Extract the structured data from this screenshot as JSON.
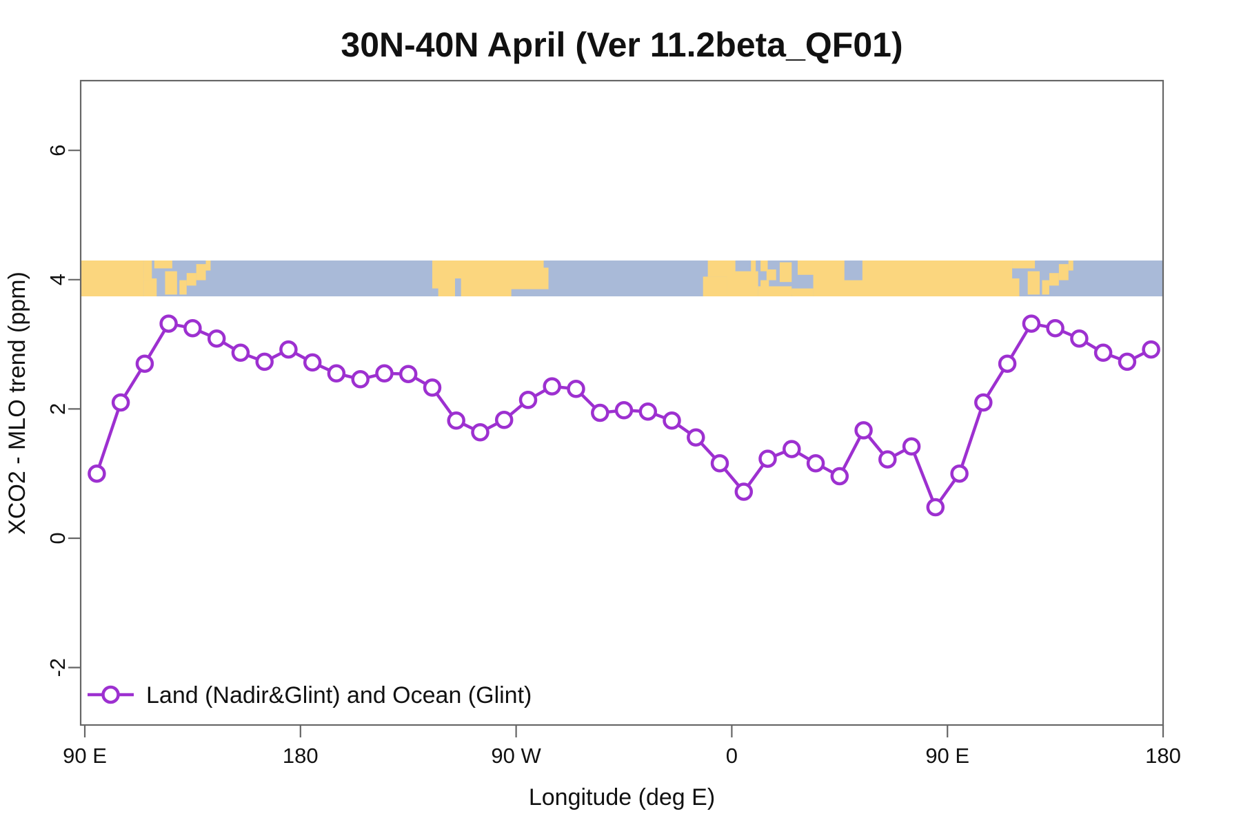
{
  "title": "30N-40N April (Ver 11.2beta_QF01)",
  "chart_data": {
    "type": "line",
    "title": "30N-40N April (Ver 11.2beta_QF01)",
    "xlabel": "Longitude (deg E)",
    "ylabel": "XCO2 - MLO trend (ppm)",
    "xlim": [
      86,
      540
    ],
    "ylim": [
      -2.9,
      7.05
    ],
    "grid": false,
    "legend_position": "bottom-left",
    "x_ticks": {
      "values": [
        90,
        180,
        270,
        360,
        450,
        540
      ],
      "labels": [
        "90 E",
        "180",
        "90 W",
        "0",
        "90 E",
        "180"
      ]
    },
    "y_ticks": {
      "values": [
        -2,
        0,
        2,
        4,
        6
      ],
      "labels": [
        "-2",
        "0",
        "2",
        "4",
        "6"
      ]
    },
    "series": [
      {
        "name": "Land (Nadir&Glint) and Ocean (Glint)",
        "color": "#9D30D0",
        "marker": "open-circle",
        "lon_axis_deg": [
          95,
          105,
          115,
          125,
          135,
          145,
          155,
          165,
          175,
          185,
          195,
          205,
          215,
          225,
          235,
          245,
          255,
          265,
          275,
          285,
          295,
          305,
          315,
          325,
          335,
          345,
          355,
          365,
          375,
          385,
          395,
          405,
          415,
          425,
          435,
          445,
          455,
          465,
          475,
          485,
          495,
          505,
          515,
          525,
          535
        ],
        "values": [
          1.0,
          2.1,
          2.7,
          3.32,
          3.25,
          3.09,
          2.87,
          2.73,
          2.92,
          2.72,
          2.55,
          2.46,
          2.55,
          2.54,
          2.33,
          1.82,
          1.64,
          1.83,
          2.14,
          2.35,
          2.31,
          1.94,
          1.98,
          1.96,
          1.82,
          1.56,
          1.16,
          0.72,
          1.23,
          1.38,
          1.16,
          0.96,
          1.67,
          1.22,
          1.42,
          0.48,
          1.0,
          2.1,
          2.7,
          3.32,
          3.25,
          3.09,
          2.87,
          2.73,
          2.92
        ]
      }
    ],
    "map_band": {
      "description": "world coastline strip for 30N-40N latitude band",
      "value_top": 4.3,
      "value_bottom": 3.74,
      "ocean_color": "#A9BAD8",
      "land_color": "#FBD67E",
      "land_rects": [
        [
          86,
          114.5,
          0,
          1
        ],
        [
          114.5,
          120,
          0.5,
          1
        ],
        [
          114.5,
          118,
          0,
          0.55
        ],
        [
          119,
          126.5,
          0,
          0.22
        ],
        [
          123.5,
          128.5,
          0.3,
          0.95
        ],
        [
          129.5,
          132.5,
          0.55,
          0.95
        ],
        [
          132.5,
          136.5,
          0.35,
          0.7
        ],
        [
          136.5,
          140.5,
          0.1,
          0.55
        ],
        [
          140.5,
          142.5,
          0,
          0.28
        ],
        [
          235,
          283.5,
          0,
          1
        ],
        [
          348,
          358,
          0.45,
          1
        ],
        [
          358,
          371,
          0.3,
          1
        ],
        [
          371,
          385,
          0.72,
          1
        ],
        [
          385,
          394,
          0.78,
          1
        ],
        [
          394,
          477,
          0,
          1
        ],
        [
          387.5,
          404,
          0,
          0.4
        ],
        [
          350,
          361.5,
          0,
          0.45
        ],
        [
          368,
          370,
          0,
          0.4
        ],
        [
          372,
          375,
          0,
          0.3
        ],
        [
          374.5,
          378.5,
          0.25,
          0.55
        ],
        [
          372,
          375.5,
          0.55,
          0.75
        ],
        [
          380,
          385,
          0.05,
          0.6
        ],
        [
          383.5,
          386.5,
          0.82,
          0.95
        ],
        [
          474.5,
          480,
          0.5,
          1
        ],
        [
          477,
          486.5,
          0,
          0.22
        ],
        [
          483.5,
          488.5,
          0.3,
          0.95
        ],
        [
          489.5,
          492.5,
          0.55,
          0.95
        ],
        [
          492.5,
          496.5,
          0.35,
          0.7
        ],
        [
          496.5,
          500.5,
          0.1,
          0.55
        ],
        [
          500.5,
          502.5,
          0,
          0.28
        ]
      ],
      "ocean_patches": [
        [
          244.5,
          247,
          0.5,
          1
        ],
        [
          235,
          237.5,
          0.78,
          1
        ],
        [
          268,
          283.5,
          0.8,
          1
        ],
        [
          281.5,
          283.5,
          0,
          0.2
        ],
        [
          407,
          414.5,
          0,
          0.55
        ]
      ]
    }
  }
}
